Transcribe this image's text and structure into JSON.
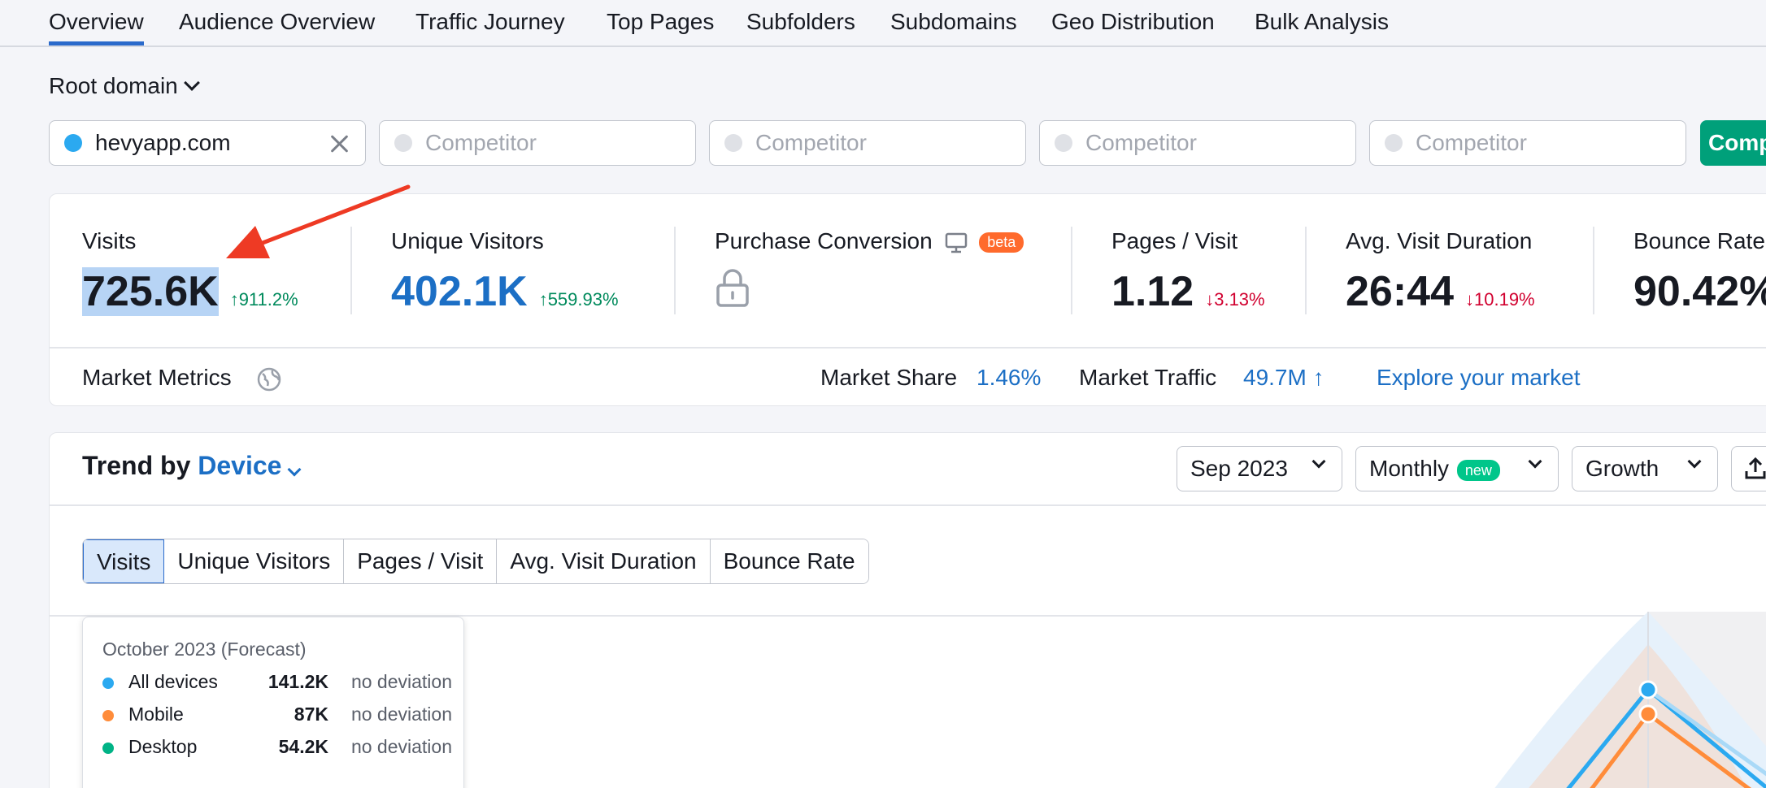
{
  "nav": {
    "tabs": [
      {
        "label": "Overview",
        "active": true
      },
      {
        "label": "Audience Overview"
      },
      {
        "label": "Traffic Journey"
      },
      {
        "label": "Top Pages"
      },
      {
        "label": "Subfolders"
      },
      {
        "label": "Subdomains"
      },
      {
        "label": "Geo Distribution"
      },
      {
        "label": "Bulk Analysis"
      }
    ]
  },
  "root_domain": {
    "label": "Root domain"
  },
  "domains": {
    "primary": {
      "value": "hevyapp.com",
      "color": "#2ba9f0"
    },
    "competitor_placeholder": "Competitor",
    "compare_label": "Comp"
  },
  "metrics": {
    "visits": {
      "label": "Visits",
      "value": "725.6K",
      "delta": "911.2%",
      "direction": "up"
    },
    "unique_visitors": {
      "label": "Unique Visitors",
      "value": "402.1K",
      "delta": "559.93%",
      "direction": "up"
    },
    "purchase_conversion": {
      "label": "Purchase Conversion",
      "badge": "beta"
    },
    "pages_visit": {
      "label": "Pages / Visit",
      "value": "1.12",
      "delta": "3.13%",
      "direction": "down"
    },
    "avg_duration": {
      "label": "Avg. Visit Duration",
      "value": "26:44",
      "delta": "10.19%",
      "direction": "down"
    },
    "bounce_rate": {
      "label": "Bounce Rate",
      "value": "90.42%"
    }
  },
  "market": {
    "label": "Market Metrics",
    "share_label": "Market Share",
    "share_value": "1.46%",
    "traffic_label": "Market Traffic",
    "traffic_value": "49.7M ↑",
    "explore": "Explore your market"
  },
  "trend": {
    "title_prefix": "Trend by",
    "title_dimension": "Device",
    "date": "Sep 2023",
    "period": "Monthly",
    "period_badge": "new",
    "mode": "Growth",
    "segments": [
      "Visits",
      "Unique Visitors",
      "Pages / Visit",
      "Avg. Visit Duration",
      "Bounce Rate"
    ],
    "tooltip": {
      "title": "October 2023 (Forecast)",
      "rows": [
        {
          "name": "All devices",
          "value": "141.2K",
          "status": "no deviation",
          "color": "#2ba9f0"
        },
        {
          "name": "Mobile",
          "value": "87K",
          "status": "no deviation",
          "color": "#ff8c3a"
        },
        {
          "name": "Desktop",
          "value": "54.2K",
          "status": "no deviation",
          "color": "#00b386"
        }
      ]
    }
  },
  "colors": {
    "accent": "#2a6acb",
    "link": "#1c6fc5",
    "positive": "#008a5c",
    "negative": "#d1002f",
    "annotation_arrow": "#ee3a24"
  }
}
